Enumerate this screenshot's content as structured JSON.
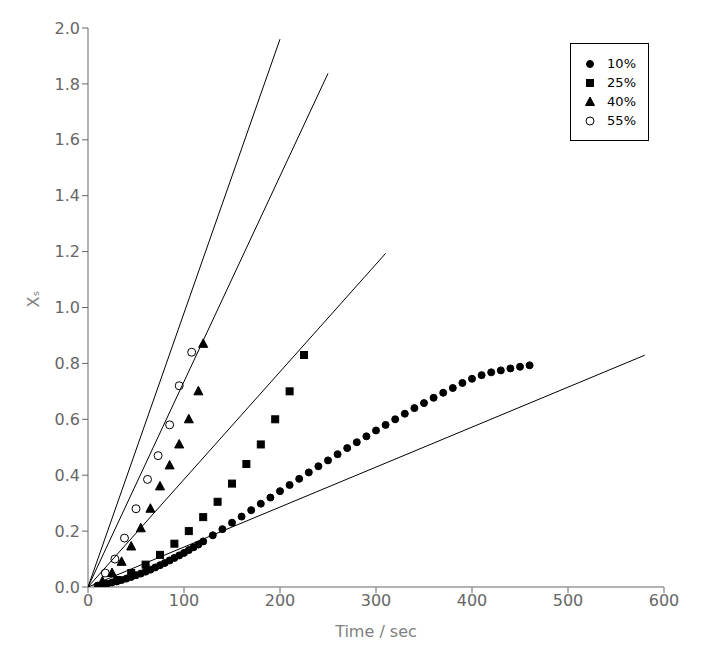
{
  "chart_data": {
    "type": "scatter",
    "title": "",
    "xlabel": "Time / sec",
    "ylabel": "Xₛ",
    "grid": false,
    "legend": "upper right",
    "xlim": [
      0,
      600
    ],
    "xticks": [
      0,
      100,
      200,
      300,
      400,
      500,
      600
    ],
    "ylim": [
      0,
      2.0
    ],
    "yticks": [
      {
        "value": 0,
        "label": "0.0"
      },
      0.2,
      0.4,
      0.6,
      0.8,
      {
        "value": 1,
        "label": "1.0"
      },
      1.2,
      1.4,
      1.6,
      1.8,
      {
        "value": 2,
        "label": "2.0"
      }
    ],
    "series": [
      {
        "name": "10%",
        "marker": "circle",
        "color": "#000000",
        "x": [
          10,
          15,
          20,
          25,
          30,
          35,
          40,
          45,
          50,
          55,
          60,
          65,
          70,
          75,
          80,
          85,
          90,
          95,
          100,
          105,
          110,
          115,
          120,
          130,
          140,
          150,
          160,
          170,
          180,
          190,
          200,
          210,
          220,
          230,
          240,
          250,
          260,
          270,
          280,
          290,
          300,
          310,
          320,
          330,
          340,
          350,
          360,
          370,
          380,
          390,
          400,
          410,
          420,
          430,
          440,
          450,
          460
        ],
        "values": [
          0.005,
          0.008,
          0.012,
          0.016,
          0.02,
          0.025,
          0.03,
          0.036,
          0.042,
          0.048,
          0.055,
          0.062,
          0.07,
          0.078,
          0.086,
          0.095,
          0.104,
          0.113,
          0.122,
          0.132,
          0.142,
          0.152,
          0.163,
          0.185,
          0.207,
          0.23,
          0.252,
          0.275,
          0.298,
          0.32,
          0.343,
          0.365,
          0.387,
          0.41,
          0.432,
          0.453,
          0.475,
          0.497,
          0.518,
          0.539,
          0.56,
          0.58,
          0.6,
          0.62,
          0.64,
          0.658,
          0.677,
          0.695,
          0.712,
          0.73,
          0.745,
          0.758,
          0.768,
          0.775,
          0.782,
          0.788,
          0.793
        ],
        "line_x": [
          0,
          580
        ],
        "line_y": [
          0,
          0.8294
        ]
      },
      {
        "name": "25%",
        "marker": "square",
        "color": "#000000",
        "x": [
          30,
          45,
          60,
          75,
          90,
          105,
          120,
          135,
          150,
          165,
          180,
          195,
          210,
          225
        ],
        "values": [
          0.025,
          0.05,
          0.08,
          0.115,
          0.155,
          0.2,
          0.25,
          0.305,
          0.37,
          0.44,
          0.51,
          0.6,
          0.7,
          0.83
        ],
        "line_x": [
          0,
          310
        ],
        "line_y": [
          0,
          1.1935
        ]
      },
      {
        "name": "40%",
        "marker": "triangle",
        "color": "#000000",
        "x": [
          15,
          25,
          35,
          45,
          55,
          65,
          75,
          85,
          95,
          105,
          115,
          120
        ],
        "values": [
          0.02,
          0.05,
          0.09,
          0.145,
          0.21,
          0.28,
          0.36,
          0.435,
          0.51,
          0.6,
          0.7,
          0.87
        ],
        "line_x": [
          0,
          250
        ],
        "line_y": [
          0,
          1.8375
        ]
      },
      {
        "name": "55%",
        "marker": "circle_open",
        "color": "#000000",
        "x": [
          18,
          28,
          38,
          50,
          62,
          73,
          85,
          95,
          108
        ],
        "values": [
          0.05,
          0.1,
          0.175,
          0.28,
          0.385,
          0.47,
          0.58,
          0.72,
          0.84
        ],
        "line_x": [
          0,
          200
        ],
        "line_y": [
          0,
          1.96
        ]
      }
    ]
  }
}
